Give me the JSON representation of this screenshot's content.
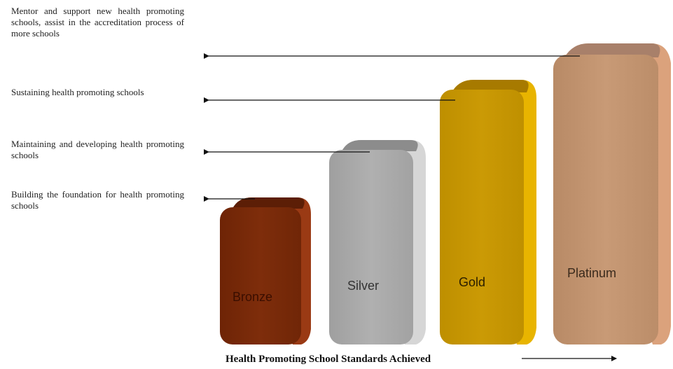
{
  "descriptions": [
    {
      "text": "Mentor and support new health promoting schools, assist in the accreditation process of more schools",
      "level": "Platinum"
    },
    {
      "text": "Sustaining health promoting schools",
      "level": "Gold"
    },
    {
      "text": "Maintaining and developing health promoting schools",
      "level": "Silver"
    },
    {
      "text": "Building the foundation for health promoting schools",
      "level": "Bronze"
    }
  ],
  "levels": [
    {
      "label": "Bronze",
      "rank": 1,
      "color": "#7a2a0a"
    },
    {
      "label": "Silver",
      "rank": 2,
      "color": "#a8a8a8"
    },
    {
      "label": "Gold",
      "rank": 3,
      "color": "#c59400"
    },
    {
      "label": "Platinum",
      "rank": 4,
      "color": "#c29470"
    }
  ],
  "axis_title": "Health Promoting School Standards Achieved"
}
